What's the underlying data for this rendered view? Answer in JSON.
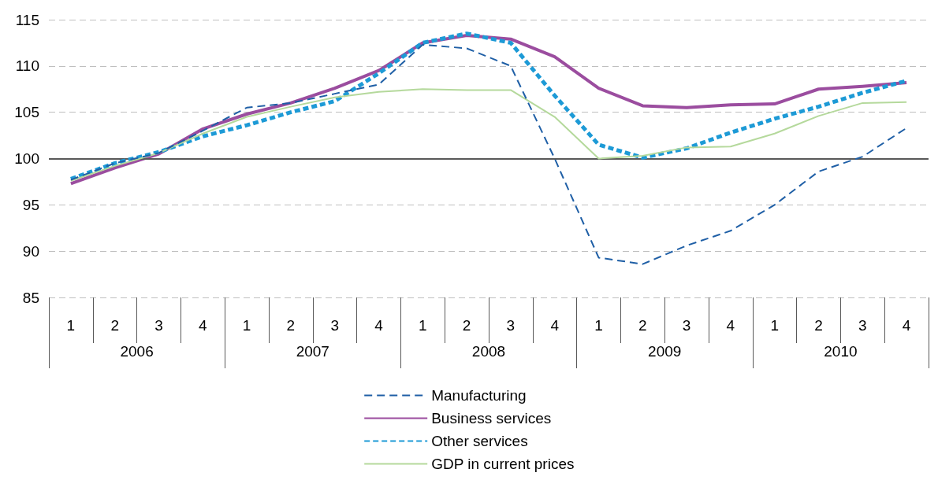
{
  "chart_data": {
    "type": "line",
    "categories": [
      "1",
      "2",
      "3",
      "4",
      "1",
      "2",
      "3",
      "4",
      "1",
      "2",
      "3",
      "4",
      "1",
      "2",
      "3",
      "4",
      "1",
      "2",
      "3",
      "4"
    ],
    "annotations": [
      "2006",
      "2007",
      "2008",
      "2009",
      "2010"
    ],
    "series": [
      {
        "name": "Manufacturing",
        "color": "#1f5fa6",
        "line_style": "dashed",
        "values": [
          97.7,
          99.5,
          100.6,
          103.0,
          105.5,
          106.0,
          107.0,
          108.0,
          112.3,
          111.9,
          110.0,
          100.0,
          89.3,
          88.6,
          90.6,
          92.2,
          95.0,
          98.6,
          100.2,
          103.3
        ]
      },
      {
        "name": "Business services",
        "color": "#9b4d9f",
        "line_style": "solid",
        "values": [
          97.3,
          99.0,
          100.5,
          103.2,
          104.8,
          106.0,
          107.6,
          109.5,
          112.5,
          113.3,
          112.9,
          111.0,
          107.6,
          105.7,
          105.5,
          105.8,
          105.9,
          107.5,
          107.8,
          108.2
        ]
      },
      {
        "name": "Other services",
        "color": "#1d9ad6",
        "line_style": "dotted",
        "values": [
          97.8,
          99.5,
          100.7,
          102.4,
          103.6,
          105.0,
          106.2,
          109.2,
          112.5,
          113.5,
          112.5,
          106.8,
          101.5,
          100.1,
          101.1,
          102.8,
          104.3,
          105.6,
          107.1,
          108.4
        ]
      },
      {
        "name": "GDP in current prices",
        "color": "#b5d99c",
        "line_style": "solid",
        "values": [
          97.6,
          99.2,
          100.6,
          102.7,
          104.5,
          105.6,
          106.6,
          107.2,
          107.5,
          107.4,
          107.4,
          104.5,
          100.0,
          100.3,
          101.2,
          101.3,
          102.7,
          104.6,
          106.0,
          106.1
        ]
      }
    ],
    "ylim": [
      85,
      115
    ],
    "yticks": [
      85,
      90,
      95,
      100,
      105,
      110,
      115
    ],
    "ref_lines": [
      {
        "axis": "y",
        "value": 100,
        "color": "#595959"
      }
    ],
    "grid": "y",
    "legend": "bottom",
    "marker": "none"
  }
}
